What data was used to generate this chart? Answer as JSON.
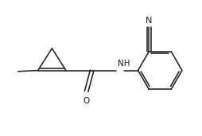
{
  "background_color": "#ffffff",
  "line_color": "#1a1a1a",
  "text_color": "#1a1a1a",
  "figsize": [
    2.54,
    1.71
  ],
  "dpi": 100,
  "atoms": {
    "O_label": "O",
    "NH_label": "NH",
    "N_label": "N"
  },
  "lw": 1.1,
  "xlim": [
    0,
    10
  ],
  "ylim": [
    0,
    6.74
  ]
}
